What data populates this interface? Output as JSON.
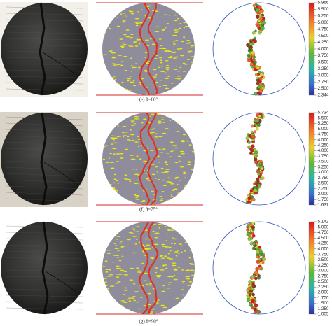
{
  "panels": [
    {
      "caption": "(e) θ=60°",
      "colorbar": [
        "-5.966",
        "-5.500",
        "-5.250",
        "-5.000",
        "-4.750",
        "-4.500",
        "-4.250",
        "-4.000",
        "-3.750",
        "-3.500",
        "-3.250",
        "-3.000",
        "-2.750",
        "-2.500",
        "-2.344"
      ]
    },
    {
      "caption": "(f) θ=75°",
      "colorbar": [
        "-5.734",
        "-5.500",
        "-5.250",
        "-5.000",
        "-4.750",
        "-4.500",
        "-4.250",
        "-4.000",
        "-3.750",
        "-3.500",
        "-3.250",
        "-3.000",
        "-2.750",
        "-2.500",
        "-2.250",
        "-2.000",
        "-1.750",
        "-1.637"
      ]
    },
    {
      "caption": "(g) θ=90°",
      "colorbar": [
        "-5.142",
        "-5.000",
        "-4.750",
        "-4.500",
        "-4.250",
        "-4.000",
        "-3.750",
        "-3.500",
        "-3.250",
        "-3.000",
        "-2.750",
        "-2.500",
        "-2.250",
        "-2.000",
        "-1.750",
        "-1.500",
        "-1.250",
        "-1.005"
      ]
    }
  ]
}
